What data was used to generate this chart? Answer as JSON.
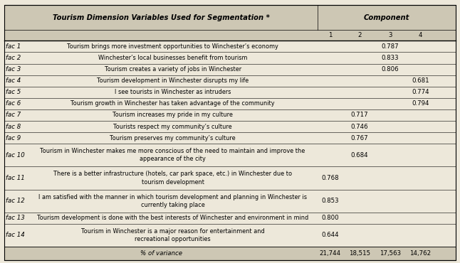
{
  "title_left": "Tourism Dimension Variables Used for Segmentation *",
  "title_right": "Component",
  "rows": [
    {
      "fac": "fac 1",
      "desc": "Tourism brings more investment opportunities to Winchester’s economy",
      "c1": "",
      "c2": "",
      "c3": "0.787",
      "c4": ""
    },
    {
      "fac": "fac 2",
      "desc": "Winchester’s local businesses benefit from tourism",
      "c1": "",
      "c2": "",
      "c3": "0.833",
      "c4": ""
    },
    {
      "fac": "fac 3",
      "desc": "Tourism creates a variety of jobs in Winchester",
      "c1": "",
      "c2": "",
      "c3": "0.806",
      "c4": ""
    },
    {
      "fac": "fac 4",
      "desc": "Tourism development in Winchester disrupts my life",
      "c1": "",
      "c2": "",
      "c3": "",
      "c4": "0.681"
    },
    {
      "fac": "fac 5",
      "desc": "I see tourists in Winchester as intruders",
      "c1": "",
      "c2": "",
      "c3": "",
      "c4": "0.774"
    },
    {
      "fac": "fac 6",
      "desc": "Tourism growth in Winchester has taken advantage of the community",
      "c1": "",
      "c2": "",
      "c3": "",
      "c4": "0.794"
    },
    {
      "fac": "fac 7",
      "desc": "Tourism increases my pride in my culture",
      "c1": "",
      "c2": "0.717",
      "c3": "",
      "c4": ""
    },
    {
      "fac": "fac 8",
      "desc": "Tourists respect my community’s culture",
      "c1": "",
      "c2": "0.746",
      "c3": "",
      "c4": ""
    },
    {
      "fac": "fac 9",
      "desc": "Tourism preserves my community’s culture",
      "c1": "",
      "c2": "0.767",
      "c3": "",
      "c4": ""
    },
    {
      "fac": "fac 10",
      "desc": "Tourism in Winchester makes me more conscious of the need to maintain and improve the\nappearance of the city",
      "c1": "",
      "c2": "0.684",
      "c3": "",
      "c4": ""
    },
    {
      "fac": "fac 11",
      "desc": "There is a better infrastructure (hotels, car park space, etc.) in Winchester due to\ntourism development",
      "c1": "0.768",
      "c2": "",
      "c3": "",
      "c4": ""
    },
    {
      "fac": "fac 12",
      "desc": "I am satisfied with the manner in which tourism development and planning in Winchester is\ncurrently taking place",
      "c1": "0.853",
      "c2": "",
      "c3": "",
      "c4": ""
    },
    {
      "fac": "fac 13",
      "desc": "Tourism development is done with the best interests of Winchester and environment in mind",
      "c1": "0.800",
      "c2": "",
      "c3": "",
      "c4": ""
    },
    {
      "fac": "fac 14",
      "desc": "Tourism in Winchester is a major reason for entertainment and\nrecreational opportunities",
      "c1": "0.644",
      "c2": "",
      "c3": "",
      "c4": ""
    }
  ],
  "footer_label": "% of variance",
  "footer_vals": [
    "21,744",
    "18,515",
    "17,563",
    "14,762"
  ],
  "bg_color": "#ede8da",
  "header_bg": "#cdc7b4",
  "line_color": "#000000",
  "text_color": "#000000",
  "font_size": 6.2,
  "title_font_size": 7.2,
  "row_rel": [
    1,
    1,
    1,
    1,
    1,
    1,
    1,
    1,
    1,
    2,
    2,
    2,
    1,
    2
  ]
}
